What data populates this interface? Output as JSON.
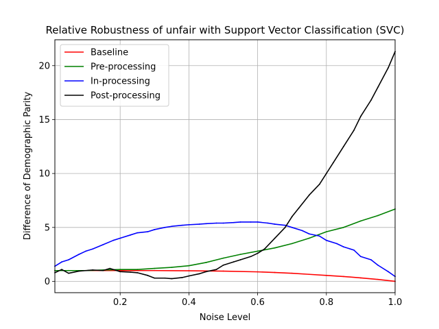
{
  "chart_data": {
    "type": "line",
    "title": "Relative Robustness of unfair with Support Vector Classification (SVC)",
    "xlabel": "Noise Level",
    "ylabel": "Difference of Demographic Parity",
    "xlim": [
      0.01,
      1.0
    ],
    "ylim": [
      -1.05,
      22.4
    ],
    "xticks": [
      0.2,
      0.4,
      0.6,
      0.8,
      1.0
    ],
    "xtick_labels": [
      "0.2",
      "0.4",
      "0.6",
      "0.8",
      "1.0"
    ],
    "yticks": [
      0,
      5,
      10,
      15,
      20
    ],
    "ytick_labels": [
      "0",
      "5",
      "10",
      "15",
      "20"
    ],
    "grid": true,
    "legend_position": "upper-left",
    "series": [
      {
        "name": "Baseline",
        "color": "#ff0000",
        "x": [
          0.01,
          0.05,
          0.1,
          0.15,
          0.2,
          0.3,
          0.4,
          0.5,
          0.6,
          0.65,
          0.7,
          0.75,
          0.8,
          0.85,
          0.9,
          0.95,
          1.0
        ],
        "y": [
          1.0,
          1.0,
          1.0,
          1.0,
          1.0,
          1.0,
          0.98,
          0.95,
          0.88,
          0.82,
          0.75,
          0.65,
          0.55,
          0.45,
          0.32,
          0.18,
          0.0
        ]
      },
      {
        "name": "Pre-processing",
        "color": "#008000",
        "x": [
          0.01,
          0.05,
          0.1,
          0.15,
          0.2,
          0.25,
          0.3,
          0.35,
          0.4,
          0.45,
          0.5,
          0.55,
          0.6,
          0.65,
          0.7,
          0.75,
          0.8,
          0.85,
          0.9,
          0.95,
          1.0
        ],
        "y": [
          1.0,
          1.0,
          1.0,
          1.05,
          1.1,
          1.1,
          1.2,
          1.3,
          1.45,
          1.75,
          2.15,
          2.5,
          2.8,
          3.1,
          3.5,
          4.0,
          4.6,
          5.0,
          5.6,
          6.1,
          6.7
        ]
      },
      {
        "name": "In-processing",
        "color": "#0000ff",
        "x": [
          0.01,
          0.03,
          0.05,
          0.08,
          0.1,
          0.12,
          0.15,
          0.18,
          0.2,
          0.23,
          0.25,
          0.28,
          0.3,
          0.33,
          0.35,
          0.38,
          0.4,
          0.43,
          0.45,
          0.48,
          0.5,
          0.53,
          0.55,
          0.58,
          0.6,
          0.63,
          0.65,
          0.68,
          0.7,
          0.73,
          0.75,
          0.78,
          0.8,
          0.83,
          0.85,
          0.88,
          0.9,
          0.93,
          0.95,
          0.98,
          1.0
        ],
        "y": [
          1.4,
          1.8,
          2.0,
          2.5,
          2.8,
          3.0,
          3.4,
          3.8,
          4.0,
          4.3,
          4.5,
          4.6,
          4.8,
          5.0,
          5.1,
          5.2,
          5.25,
          5.3,
          5.35,
          5.4,
          5.4,
          5.45,
          5.5,
          5.5,
          5.5,
          5.4,
          5.3,
          5.2,
          5.0,
          4.7,
          4.4,
          4.2,
          3.8,
          3.5,
          3.2,
          2.9,
          2.3,
          2.0,
          1.5,
          0.9,
          0.45
        ]
      },
      {
        "name": "Post-processing",
        "color": "#000000",
        "x": [
          0.01,
          0.03,
          0.05,
          0.08,
          0.1,
          0.12,
          0.15,
          0.17,
          0.2,
          0.23,
          0.25,
          0.28,
          0.3,
          0.33,
          0.35,
          0.38,
          0.4,
          0.43,
          0.45,
          0.48,
          0.5,
          0.53,
          0.55,
          0.58,
          0.6,
          0.62,
          0.65,
          0.68,
          0.7,
          0.72,
          0.75,
          0.78,
          0.8,
          0.82,
          0.85,
          0.88,
          0.9,
          0.93,
          0.95,
          0.98,
          1.0
        ],
        "y": [
          0.8,
          1.1,
          0.75,
          0.95,
          1.0,
          1.05,
          1.0,
          1.2,
          0.9,
          0.85,
          0.8,
          0.55,
          0.3,
          0.3,
          0.25,
          0.35,
          0.5,
          0.7,
          0.9,
          1.1,
          1.5,
          1.8,
          2.0,
          2.3,
          2.6,
          3.0,
          4.0,
          5.0,
          6.0,
          6.8,
          8.0,
          9.0,
          10.0,
          11.0,
          12.5,
          14.0,
          15.3,
          16.8,
          18.0,
          19.8,
          21.3
        ]
      }
    ]
  }
}
